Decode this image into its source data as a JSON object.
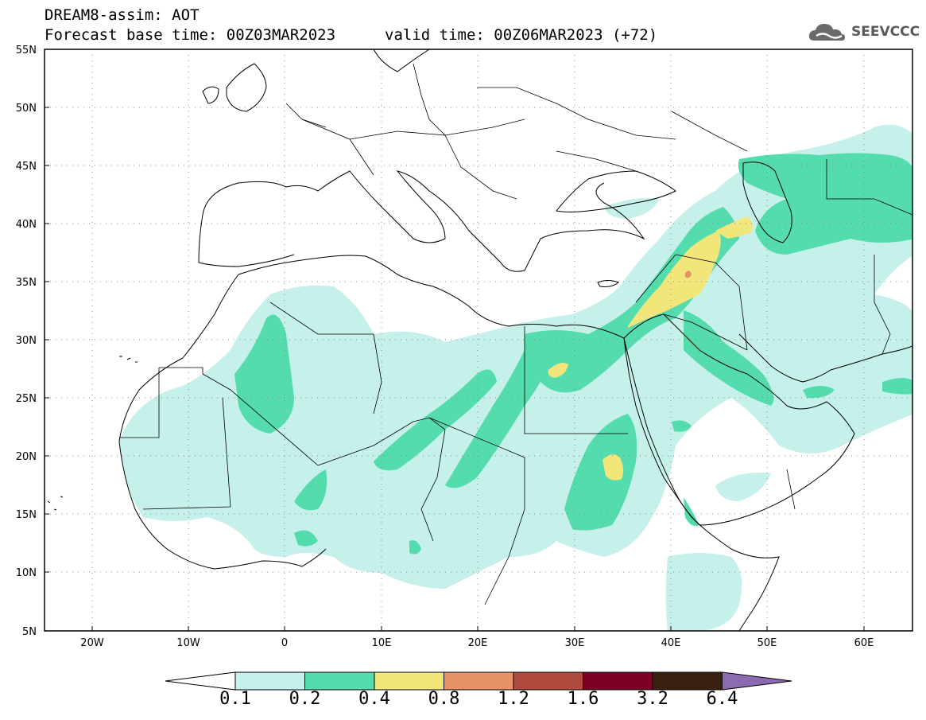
{
  "header": {
    "line1": "DREAM8-assim: AOT",
    "line2": "Forecast base time: 00Z03MAR2023",
    "valid": "valid time: 00Z06MAR2023 (+72)"
  },
  "logo": {
    "text": "SEEVCCC",
    "icon": "cloud-logo-icon"
  },
  "map": {
    "lon_range": [
      -25,
      65
    ],
    "lat_range": [
      5,
      55
    ],
    "lat_ticks": [
      "55N",
      "50N",
      "45N",
      "40N",
      "35N",
      "30N",
      "25N",
      "20N",
      "15N",
      "10N",
      "5N"
    ],
    "lon_ticks": [
      "20W",
      "10W",
      "0",
      "10E",
      "20E",
      "30E",
      "40E",
      "50E",
      "60E"
    ]
  },
  "colorbar": {
    "levels": [
      "0.1",
      "0.2",
      "0.4",
      "0.8",
      "1.2",
      "1.6",
      "3.2",
      "6.4"
    ],
    "colors": [
      "#ffffff",
      "#c6f0ea",
      "#54dcae",
      "#f2e67a",
      "#e89367",
      "#b04a3c",
      "#7d0024",
      "#3a2010",
      "#8c6cb0"
    ]
  }
}
